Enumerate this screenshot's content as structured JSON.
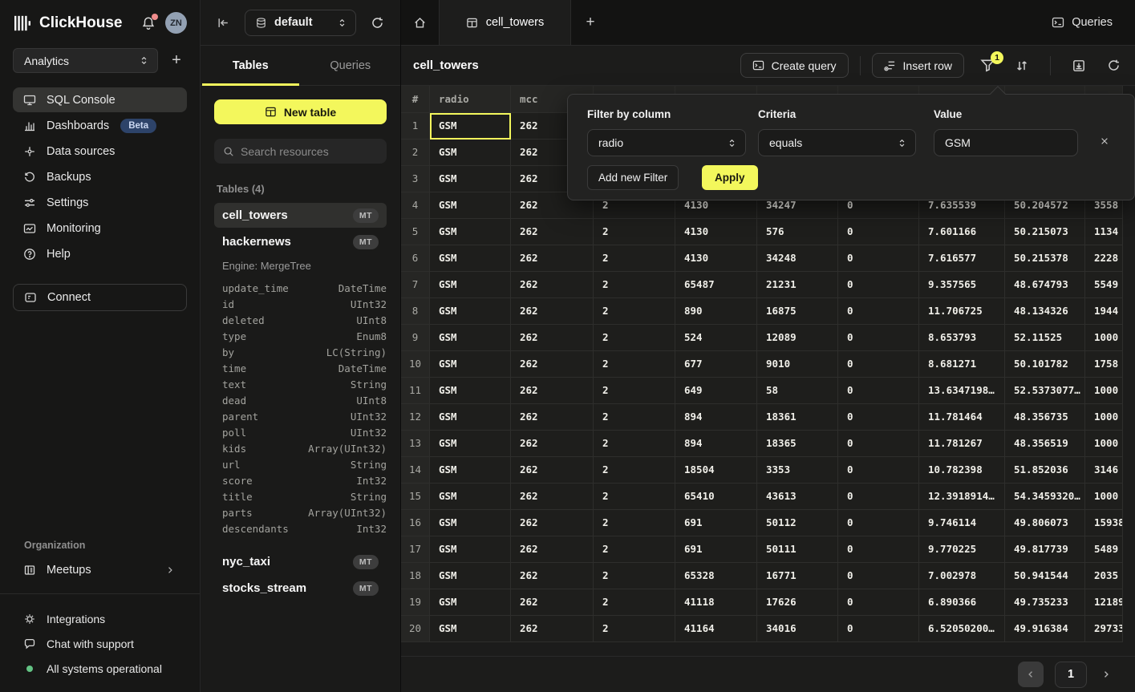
{
  "brand": {
    "name": "ClickHouse"
  },
  "topbar": {
    "workspace": "Analytics",
    "avatar": "ZN"
  },
  "sidebar": {
    "items": [
      {
        "label": "SQL Console",
        "icon": "console",
        "active": true
      },
      {
        "label": "Dashboards",
        "icon": "dashboards",
        "badge": "Beta"
      },
      {
        "label": "Data sources",
        "icon": "data-sources"
      },
      {
        "label": "Backups",
        "icon": "backups"
      },
      {
        "label": "Settings",
        "icon": "settings"
      },
      {
        "label": "Monitoring",
        "icon": "monitoring"
      },
      {
        "label": "Help",
        "icon": "help"
      }
    ],
    "connect_label": "Connect",
    "organization_label": "Organization",
    "org_items": [
      {
        "label": "Meetups",
        "icon": "meetups"
      }
    ],
    "footer_items": [
      {
        "label": "Integrations",
        "icon": "integrations"
      },
      {
        "label": "Chat with support",
        "icon": "chat"
      },
      {
        "label": "All systems operational",
        "icon": "status-dot"
      }
    ]
  },
  "explorer": {
    "database": "default",
    "tabs": [
      {
        "label": "Tables",
        "active": true
      },
      {
        "label": "Queries",
        "active": false
      }
    ],
    "new_table_label": "New table",
    "search_placeholder": "Search resources",
    "section_label": "Tables (4)",
    "tables": [
      {
        "name": "cell_towers",
        "badge": "MT",
        "selected": true
      },
      {
        "name": "hackernews",
        "badge": "MT",
        "engine": "Engine: MergeTree",
        "fields": [
          [
            "update_time",
            "DateTime"
          ],
          [
            "id",
            "UInt32"
          ],
          [
            "deleted",
            "UInt8"
          ],
          [
            "type",
            "Enum8"
          ],
          [
            "by",
            "LC(String)"
          ],
          [
            "time",
            "DateTime"
          ],
          [
            "text",
            "String"
          ],
          [
            "dead",
            "UInt8"
          ],
          [
            "parent",
            "UInt32"
          ],
          [
            "poll",
            "UInt32"
          ],
          [
            "kids",
            "Array(UInt32)"
          ],
          [
            "url",
            "String"
          ],
          [
            "score",
            "Int32"
          ],
          [
            "title",
            "String"
          ],
          [
            "parts",
            "Array(UInt32)"
          ],
          [
            "descendants",
            "Int32"
          ]
        ]
      },
      {
        "name": "nyc_taxi",
        "badge": "MT"
      },
      {
        "name": "stocks_stream",
        "badge": "MT"
      }
    ]
  },
  "main": {
    "tab_label": "cell_towers",
    "title": "cell_towers",
    "queries_label": "Queries",
    "create_query_label": "Create query",
    "insert_row_label": "Insert row",
    "filter_badge": "1",
    "pagination": {
      "page": "1"
    }
  },
  "filter_popup": {
    "column_label": "Filter by column",
    "column_value": "radio",
    "criteria_label": "Criteria",
    "criteria_value": "equals",
    "value_label": "Value",
    "value_value": "GSM",
    "add_label": "Add new Filter",
    "apply_label": "Apply"
  },
  "table": {
    "columns": [
      "#",
      "radio",
      "mcc",
      "",
      "",
      "",
      "",
      "",
      "",
      ""
    ],
    "rows": [
      [
        "GSM",
        "262",
        "",
        "",
        "",
        "",
        "",
        "",
        ""
      ],
      [
        "GSM",
        "262",
        "",
        "",
        "",
        "",
        "",
        "",
        ""
      ],
      [
        "GSM",
        "262",
        "",
        "",
        "",
        "",
        "",
        "",
        ""
      ],
      [
        "GSM",
        "262",
        "2",
        "4130",
        "34247",
        "0",
        "7.635539",
        "50.204572",
        "3558"
      ],
      [
        "GSM",
        "262",
        "2",
        "4130",
        "576",
        "0",
        "7.601166",
        "50.215073",
        "1134"
      ],
      [
        "GSM",
        "262",
        "2",
        "4130",
        "34248",
        "0",
        "7.616577",
        "50.215378",
        "2228"
      ],
      [
        "GSM",
        "262",
        "2",
        "65487",
        "21231",
        "0",
        "9.357565",
        "48.674793",
        "5549"
      ],
      [
        "GSM",
        "262",
        "2",
        "890",
        "16875",
        "0",
        "11.706725",
        "48.134326",
        "1944"
      ],
      [
        "GSM",
        "262",
        "2",
        "524",
        "12089",
        "0",
        "8.653793",
        "52.11525",
        "1000"
      ],
      [
        "GSM",
        "262",
        "2",
        "677",
        "9010",
        "0",
        "8.681271",
        "50.101782",
        "1758"
      ],
      [
        "GSM",
        "262",
        "2",
        "649",
        "58",
        "0",
        "13.6347198…",
        "52.5373077…",
        "1000"
      ],
      [
        "GSM",
        "262",
        "2",
        "894",
        "18361",
        "0",
        "11.781464",
        "48.356735",
        "1000"
      ],
      [
        "GSM",
        "262",
        "2",
        "894",
        "18365",
        "0",
        "11.781267",
        "48.356519",
        "1000"
      ],
      [
        "GSM",
        "262",
        "2",
        "18504",
        "3353",
        "0",
        "10.782398",
        "51.852036",
        "3146"
      ],
      [
        "GSM",
        "262",
        "2",
        "65410",
        "43613",
        "0",
        "12.3918914…",
        "54.3459320…",
        "1000"
      ],
      [
        "GSM",
        "262",
        "2",
        "691",
        "50112",
        "0",
        "9.746114",
        "49.806073",
        "15938"
      ],
      [
        "GSM",
        "262",
        "2",
        "691",
        "50111",
        "0",
        "9.770225",
        "49.817739",
        "5489"
      ],
      [
        "GSM",
        "262",
        "2",
        "65328",
        "16771",
        "0",
        "7.002978",
        "50.941544",
        "2035"
      ],
      [
        "GSM",
        "262",
        "2",
        "41118",
        "17626",
        "0",
        "6.890366",
        "49.735233",
        "12189"
      ],
      [
        "GSM",
        "262",
        "2",
        "41164",
        "34016",
        "0",
        "6.52050200…",
        "49.916384",
        "29733"
      ]
    ],
    "selected_cell": {
      "row": 0,
      "col": 0
    }
  },
  "colors": {
    "accent": "#f3f75c"
  }
}
